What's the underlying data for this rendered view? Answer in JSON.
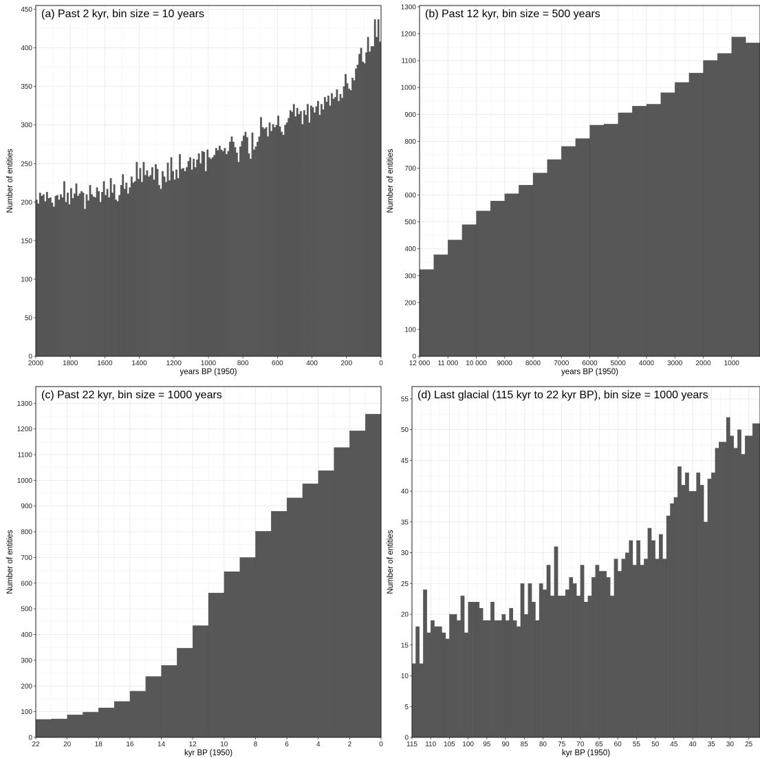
{
  "chart_data": [
    {
      "type": "bar",
      "title": "(a) Past 2 kyr, bin size = 10 years",
      "xlabel": "years BP (1950)",
      "ylabel": "Number of entities",
      "xlim": [
        2000,
        0
      ],
      "ylim": [
        0,
        455
      ],
      "xticks": [
        2000,
        1800,
        1600,
        1400,
        1200,
        1000,
        800,
        600,
        400,
        200,
        0
      ],
      "xtick_labels": [
        "2000",
        "1800",
        "1600",
        "1400",
        "1200",
        "1000",
        "800",
        "600",
        "400",
        "200",
        "0"
      ],
      "yticks": [
        0,
        50,
        100,
        150,
        200,
        250,
        300,
        350,
        400,
        450
      ],
      "ytick_labels": [
        "0",
        "50",
        "100",
        "150",
        "200",
        "250",
        "300",
        "350",
        "400",
        "450"
      ],
      "bin_width": 10,
      "x": [
        1995,
        1985,
        1975,
        1965,
        1955,
        1945,
        1935,
        1925,
        1915,
        1905,
        1895,
        1885,
        1875,
        1865,
        1855,
        1845,
        1835,
        1825,
        1815,
        1805,
        1795,
        1785,
        1775,
        1765,
        1755,
        1745,
        1735,
        1725,
        1715,
        1705,
        1695,
        1685,
        1675,
        1665,
        1655,
        1645,
        1635,
        1625,
        1615,
        1605,
        1595,
        1585,
        1575,
        1565,
        1555,
        1545,
        1535,
        1525,
        1515,
        1505,
        1495,
        1485,
        1475,
        1465,
        1455,
        1445,
        1435,
        1425,
        1415,
        1405,
        1395,
        1385,
        1375,
        1365,
        1355,
        1345,
        1335,
        1325,
        1315,
        1305,
        1295,
        1285,
        1275,
        1265,
        1255,
        1245,
        1235,
        1225,
        1215,
        1205,
        1195,
        1185,
        1175,
        1165,
        1155,
        1145,
        1135,
        1125,
        1115,
        1105,
        1095,
        1085,
        1075,
        1065,
        1055,
        1045,
        1035,
        1025,
        1015,
        1005,
        995,
        985,
        975,
        965,
        955,
        945,
        935,
        925,
        915,
        905,
        895,
        885,
        875,
        865,
        855,
        845,
        835,
        825,
        815,
        805,
        795,
        785,
        775,
        765,
        755,
        745,
        735,
        725,
        715,
        705,
        695,
        685,
        675,
        665,
        655,
        645,
        635,
        625,
        615,
        605,
        595,
        585,
        575,
        565,
        555,
        545,
        535,
        525,
        515,
        505,
        495,
        485,
        475,
        465,
        455,
        445,
        435,
        425,
        415,
        405,
        395,
        385,
        375,
        365,
        355,
        345,
        335,
        325,
        315,
        305,
        295,
        285,
        275,
        265,
        255,
        245,
        235,
        225,
        215,
        205,
        195,
        185,
        175,
        165,
        155,
        145,
        135,
        125,
        115,
        105,
        95,
        85,
        75,
        65,
        55,
        45,
        35,
        25,
        15,
        5
      ],
      "values": [
        203,
        198,
        212,
        208,
        210,
        201,
        213,
        205,
        206,
        199,
        194,
        208,
        209,
        203,
        210,
        206,
        227,
        200,
        212,
        197,
        218,
        205,
        211,
        224,
        208,
        211,
        214,
        212,
        191,
        210,
        202,
        222,
        210,
        207,
        206,
        219,
        214,
        200,
        213,
        227,
        209,
        217,
        206,
        231,
        212,
        223,
        203,
        201,
        209,
        222,
        236,
        217,
        225,
        211,
        219,
        233,
        225,
        227,
        252,
        230,
        244,
        226,
        252,
        235,
        241,
        233,
        235,
        245,
        229,
        249,
        243,
        222,
        217,
        240,
        233,
        226,
        251,
        228,
        258,
        240,
        229,
        242,
        231,
        262,
        243,
        244,
        240,
        245,
        253,
        258,
        242,
        256,
        245,
        255,
        263,
        250,
        266,
        265,
        240,
        268,
        258,
        256,
        258,
        261,
        270,
        267,
        273,
        268,
        266,
        270,
        262,
        266,
        278,
        285,
        278,
        271,
        264,
        252,
        272,
        279,
        286,
        291,
        284,
        263,
        256,
        290,
        268,
        272,
        278,
        285,
        310,
        297,
        295,
        297,
        285,
        303,
        292,
        301,
        297,
        300,
        312,
        298,
        291,
        287,
        300,
        303,
        309,
        319,
        317,
        327,
        311,
        322,
        314,
        318,
        301,
        319,
        313,
        327,
        303,
        325,
        323,
        316,
        324,
        331,
        313,
        327,
        320,
        336,
        330,
        338,
        325,
        341,
        334,
        336,
        346,
        331,
        340,
        335,
        350,
        366,
        354,
        347,
        345,
        361,
        358,
        373,
        378,
        392,
        400,
        382,
        380,
        394,
        414,
        395,
        402,
        402,
        437,
        414,
        437,
        408
      ]
    },
    {
      "type": "bar",
      "title": "(b) Past 12 kyr, bin size = 500 years",
      "xlabel": "years BP (1950)",
      "ylabel": "Number of entities",
      "xlim": [
        12000,
        0
      ],
      "ylim": [
        0,
        1305
      ],
      "xticks": [
        12000,
        11000,
        10000,
        9000,
        8000,
        7000,
        6000,
        5000,
        4000,
        3000,
        2000,
        1000
      ],
      "xtick_labels": [
        "12 000",
        "11 000",
        "10 000",
        "9000",
        "8000",
        "7000",
        "6000",
        "5000",
        "4000",
        "3000",
        "2000",
        "1000"
      ],
      "yticks": [
        0,
        100,
        200,
        300,
        400,
        500,
        600,
        700,
        800,
        900,
        1000,
        1100,
        1200,
        1300
      ],
      "ytick_labels": [
        "0",
        "100",
        "200",
        "300",
        "400",
        "500",
        "600",
        "700",
        "800",
        "900",
        "1000",
        "1100",
        "1200",
        "1300"
      ],
      "bin_width": 500,
      "x": [
        11750,
        11250,
        10750,
        10250,
        9750,
        9250,
        8750,
        8250,
        7750,
        7250,
        6750,
        6250,
        5750,
        5250,
        4750,
        4250,
        3750,
        3250,
        2750,
        2250,
        1750,
        1250,
        750,
        250
      ],
      "values": [
        323,
        378,
        433,
        490,
        541,
        578,
        605,
        637,
        682,
        732,
        781,
        810,
        860,
        864,
        906,
        931,
        938,
        981,
        1019,
        1054,
        1101,
        1127,
        1188,
        1166
      ]
    },
    {
      "type": "bar",
      "title": "(c) Past 22 kyr, bin size = 1000 years",
      "xlabel": "kyr BP (1950)",
      "ylabel": "Number of entities",
      "xlim": [
        22,
        0
      ],
      "ylim": [
        0,
        1365
      ],
      "xticks": [
        22,
        20,
        18,
        16,
        14,
        12,
        10,
        8,
        6,
        4,
        2,
        0
      ],
      "xtick_labels": [
        "22",
        "20",
        "18",
        "16",
        "14",
        "12",
        "10",
        "8",
        "6",
        "4",
        "2",
        "0"
      ],
      "yticks": [
        0,
        100,
        200,
        300,
        400,
        500,
        600,
        700,
        800,
        900,
        1000,
        1100,
        1200,
        1300
      ],
      "ytick_labels": [
        "0",
        "100",
        "200",
        "300",
        "400",
        "500",
        "600",
        "700",
        "800",
        "900",
        "1000",
        "1100",
        "1200",
        "1300"
      ],
      "bin_width": 1,
      "x": [
        21.5,
        20.5,
        19.5,
        18.5,
        17.5,
        16.5,
        15.5,
        14.5,
        13.5,
        12.5,
        11.5,
        10.5,
        9.5,
        8.5,
        7.5,
        6.5,
        5.5,
        4.5,
        3.5,
        2.5,
        1.5,
        0.5
      ],
      "values": [
        70,
        72,
        88,
        98,
        115,
        140,
        180,
        237,
        280,
        347,
        435,
        562,
        645,
        700,
        802,
        880,
        932,
        987,
        1038,
        1128,
        1193,
        1258
      ]
    },
    {
      "type": "bar",
      "title": "(d) Last glacial (115 kyr to 22 kyr BP), bin size = 1000 years",
      "xlabel": "kyr BP (1950)",
      "ylabel": "Number of entities",
      "xlim": [
        115,
        22
      ],
      "ylim": [
        0,
        57
      ],
      "xticks": [
        115,
        110,
        105,
        100,
        95,
        90,
        85,
        80,
        75,
        70,
        65,
        60,
        55,
        50,
        45,
        40,
        35,
        30,
        25
      ],
      "xtick_labels": [
        "115",
        "110",
        "105",
        "100",
        "95",
        "90",
        "85",
        "80",
        "75",
        "70",
        "65",
        "60",
        "55",
        "50",
        "45",
        "40",
        "35",
        "30",
        "25"
      ],
      "yticks": [
        0,
        5,
        10,
        15,
        20,
        25,
        30,
        35,
        40,
        45,
        50,
        55
      ],
      "ytick_labels": [
        "0",
        "5",
        "10",
        "15",
        "20",
        "25",
        "30",
        "35",
        "40",
        "45",
        "50",
        "55"
      ],
      "bin_width": 1,
      "x": [
        114.5,
        113.5,
        112.5,
        111.5,
        110.5,
        109.5,
        108.5,
        107.5,
        106.5,
        105.5,
        104.5,
        103.5,
        102.5,
        101.5,
        100.5,
        99.5,
        98.5,
        97.5,
        96.5,
        95.5,
        94.5,
        93.5,
        92.5,
        91.5,
        90.5,
        89.5,
        88.5,
        87.5,
        86.5,
        85.5,
        84.5,
        83.5,
        82.5,
        81.5,
        80.5,
        79.5,
        78.5,
        77.5,
        76.5,
        75.5,
        74.5,
        73.5,
        72.5,
        71.5,
        70.5,
        69.5,
        68.5,
        67.5,
        66.5,
        65.5,
        64.5,
        63.5,
        62.5,
        61.5,
        60.5,
        59.5,
        58.5,
        57.5,
        56.5,
        55.5,
        54.5,
        53.5,
        52.5,
        51.5,
        50.5,
        49.5,
        48.5,
        47.5,
        46.5,
        45.5,
        44.5,
        43.5,
        42.5,
        41.5,
        40.5,
        39.5,
        38.5,
        37.5,
        36.5,
        35.5,
        34.5,
        33.5,
        32.5,
        31.5,
        30.5,
        29.5,
        28.5,
        27.5,
        26.5,
        25.5,
        24.5,
        23.5,
        22.5
      ],
      "values": [
        12,
        18,
        12,
        24,
        17,
        19,
        18,
        18,
        17,
        16,
        20,
        20,
        19,
        23,
        17,
        22,
        22,
        22,
        21,
        19,
        19,
        22,
        19,
        19,
        20,
        19,
        21,
        19,
        18,
        25,
        20,
        25,
        22,
        19,
        25,
        24,
        28,
        23,
        31,
        23,
        23,
        24,
        26,
        25,
        23,
        28,
        22,
        23,
        26,
        28,
        27,
        27,
        26,
        23,
        29,
        27,
        29,
        30,
        32,
        28,
        32,
        28,
        29,
        34,
        32,
        29,
        33,
        29,
        36,
        38,
        39,
        44,
        41,
        43,
        40,
        40,
        43,
        41,
        35,
        42,
        43,
        47,
        48,
        48,
        52,
        49,
        47,
        50,
        46,
        49,
        49,
        51,
        51
      ]
    }
  ]
}
